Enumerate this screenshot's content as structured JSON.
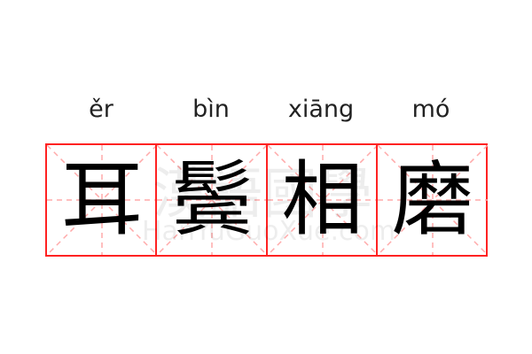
{
  "idiom": [
    {
      "pinyin": "ěr",
      "char": "耳"
    },
    {
      "pinyin": "bìn",
      "char": "鬓"
    },
    {
      "pinyin": "xiāng",
      "char": "相"
    },
    {
      "pinyin": "mó",
      "char": "磨"
    }
  ],
  "watermark": {
    "chinese": "漢語國學",
    "latin": "HanYuGuoXue.com"
  },
  "colors": {
    "grid_border": "#ff2222",
    "grid_guides": "#ffaaaa",
    "text": "#000000"
  }
}
